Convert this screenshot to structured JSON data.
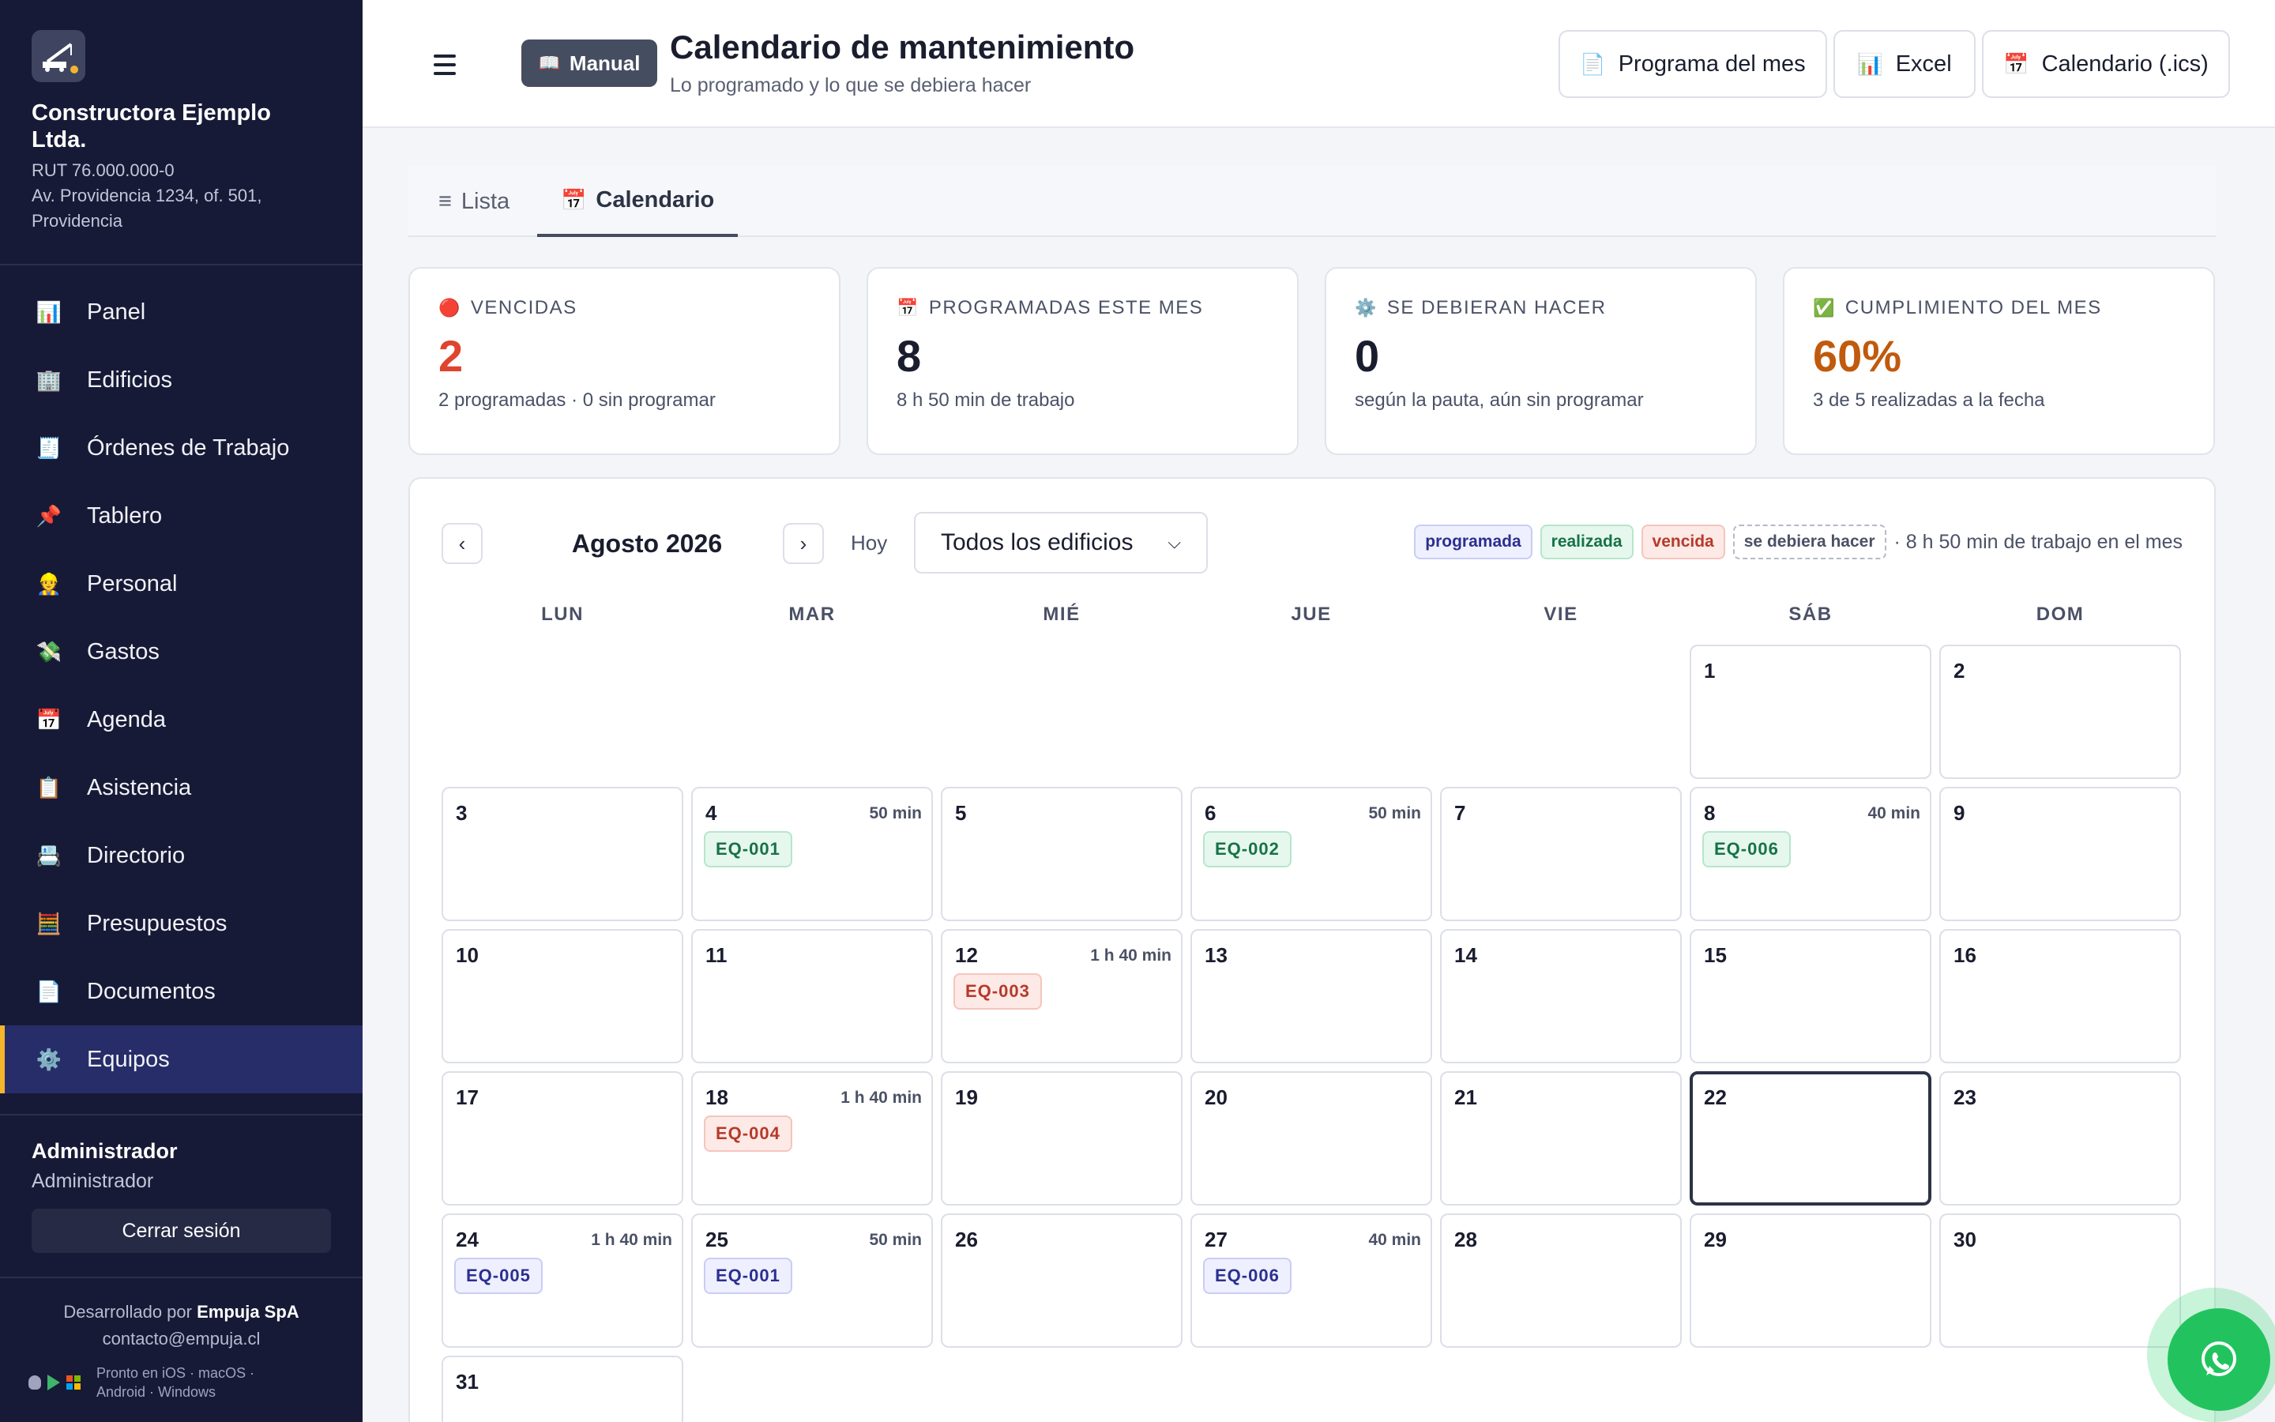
{
  "sidebar": {
    "company_name": "Constructora Ejemplo Ltda.",
    "rut": "RUT 76.000.000-0",
    "address": "Av. Providencia 1234, of. 501, Providencia",
    "items": [
      {
        "label": "Panel",
        "icon": "📊"
      },
      {
        "label": "Edificios",
        "icon": "🏢"
      },
      {
        "label": "Órdenes de Trabajo",
        "icon": "🧾"
      },
      {
        "label": "Tablero",
        "icon": "📌"
      },
      {
        "label": "Personal",
        "icon": "👷"
      },
      {
        "label": "Gastos",
        "icon": "💸"
      },
      {
        "label": "Agenda",
        "icon": "📅"
      },
      {
        "label": "Asistencia",
        "icon": "📋"
      },
      {
        "label": "Directorio",
        "icon": "📇"
      },
      {
        "label": "Presupuestos",
        "icon": "🧮"
      },
      {
        "label": "Documentos",
        "icon": "📄"
      },
      {
        "label": "Equipos",
        "icon": "⚙️"
      }
    ],
    "active_item": "Equipos",
    "user_name": "Administrador",
    "user_role": "Administrador",
    "logout_label": "Cerrar sesión",
    "footer_prefix": "Desarrollado por",
    "footer_company": "Empuja SpA",
    "footer_email": "contacto@empuja.cl",
    "footer_platforms_1": "Pronto en iOS · macOS ·",
    "footer_platforms_2": "Android · Windows"
  },
  "header": {
    "manual_label": "Manual",
    "title": "Calendario de mantenimiento",
    "subtitle": "Lo programado y lo que se debiera hacer",
    "btn_program": "Programa del mes",
    "btn_excel": "Excel",
    "btn_ics": "Calendario (.ics)"
  },
  "tabs": [
    {
      "label": "Lista",
      "icon": "≡"
    },
    {
      "label": "Calendario",
      "icon": "📅"
    }
  ],
  "active_tab": "Calendario",
  "stats": [
    {
      "icon": "🔴",
      "label": "VENCIDAS",
      "value": "2",
      "note": "2 programadas · 0 sin programar",
      "color": "#e0442e"
    },
    {
      "icon": "📅",
      "label": "PROGRAMADAS ESTE MES",
      "value": "8",
      "note": "8 h 50 min de trabajo",
      "color": "#1a1d2e"
    },
    {
      "icon": "⚙️",
      "label": "SE DEBIERAN HACER",
      "value": "0",
      "note": "según la pauta, aún sin programar",
      "color": "#1a1d2e"
    },
    {
      "icon": "✅",
      "label": "CUMPLIMIENTO DEL MES",
      "value": "60%",
      "note": "3 de 5 realizadas a la fecha",
      "color": "#c05a0c"
    }
  ],
  "calendar": {
    "month_label": "Agosto 2026",
    "prev_label": "‹",
    "next_label": "›",
    "today_label": "Hoy",
    "building_filter": "Todos los edificios",
    "legend": {
      "programada": "programada",
      "realizada": "realizada",
      "vencida": "vencida",
      "debiera": "se debiera hacer",
      "summary": "· 8 h 50 min de trabajo en el mes"
    },
    "weekdays": [
      "LUN",
      "MAR",
      "MIÉ",
      "JUE",
      "VIE",
      "SÁB",
      "DOM"
    ],
    "first_weekday_index": 5,
    "days_in_month": 31,
    "today": 22,
    "events": {
      "4": {
        "duration": "50 min",
        "chip": "EQ-001",
        "status": "realizada"
      },
      "6": {
        "duration": "50 min",
        "chip": "EQ-002",
        "status": "realizada"
      },
      "8": {
        "duration": "40 min",
        "chip": "EQ-006",
        "status": "realizada"
      },
      "12": {
        "duration": "1 h 40 min",
        "chip": "EQ-003",
        "status": "vencida"
      },
      "18": {
        "duration": "1 h 40 min",
        "chip": "EQ-004",
        "status": "vencida"
      },
      "24": {
        "duration": "1 h 40 min",
        "chip": "EQ-005",
        "status": "programada"
      },
      "25": {
        "duration": "50 min",
        "chip": "EQ-001",
        "status": "programada"
      },
      "27": {
        "duration": "40 min",
        "chip": "EQ-006",
        "status": "programada"
      }
    }
  }
}
